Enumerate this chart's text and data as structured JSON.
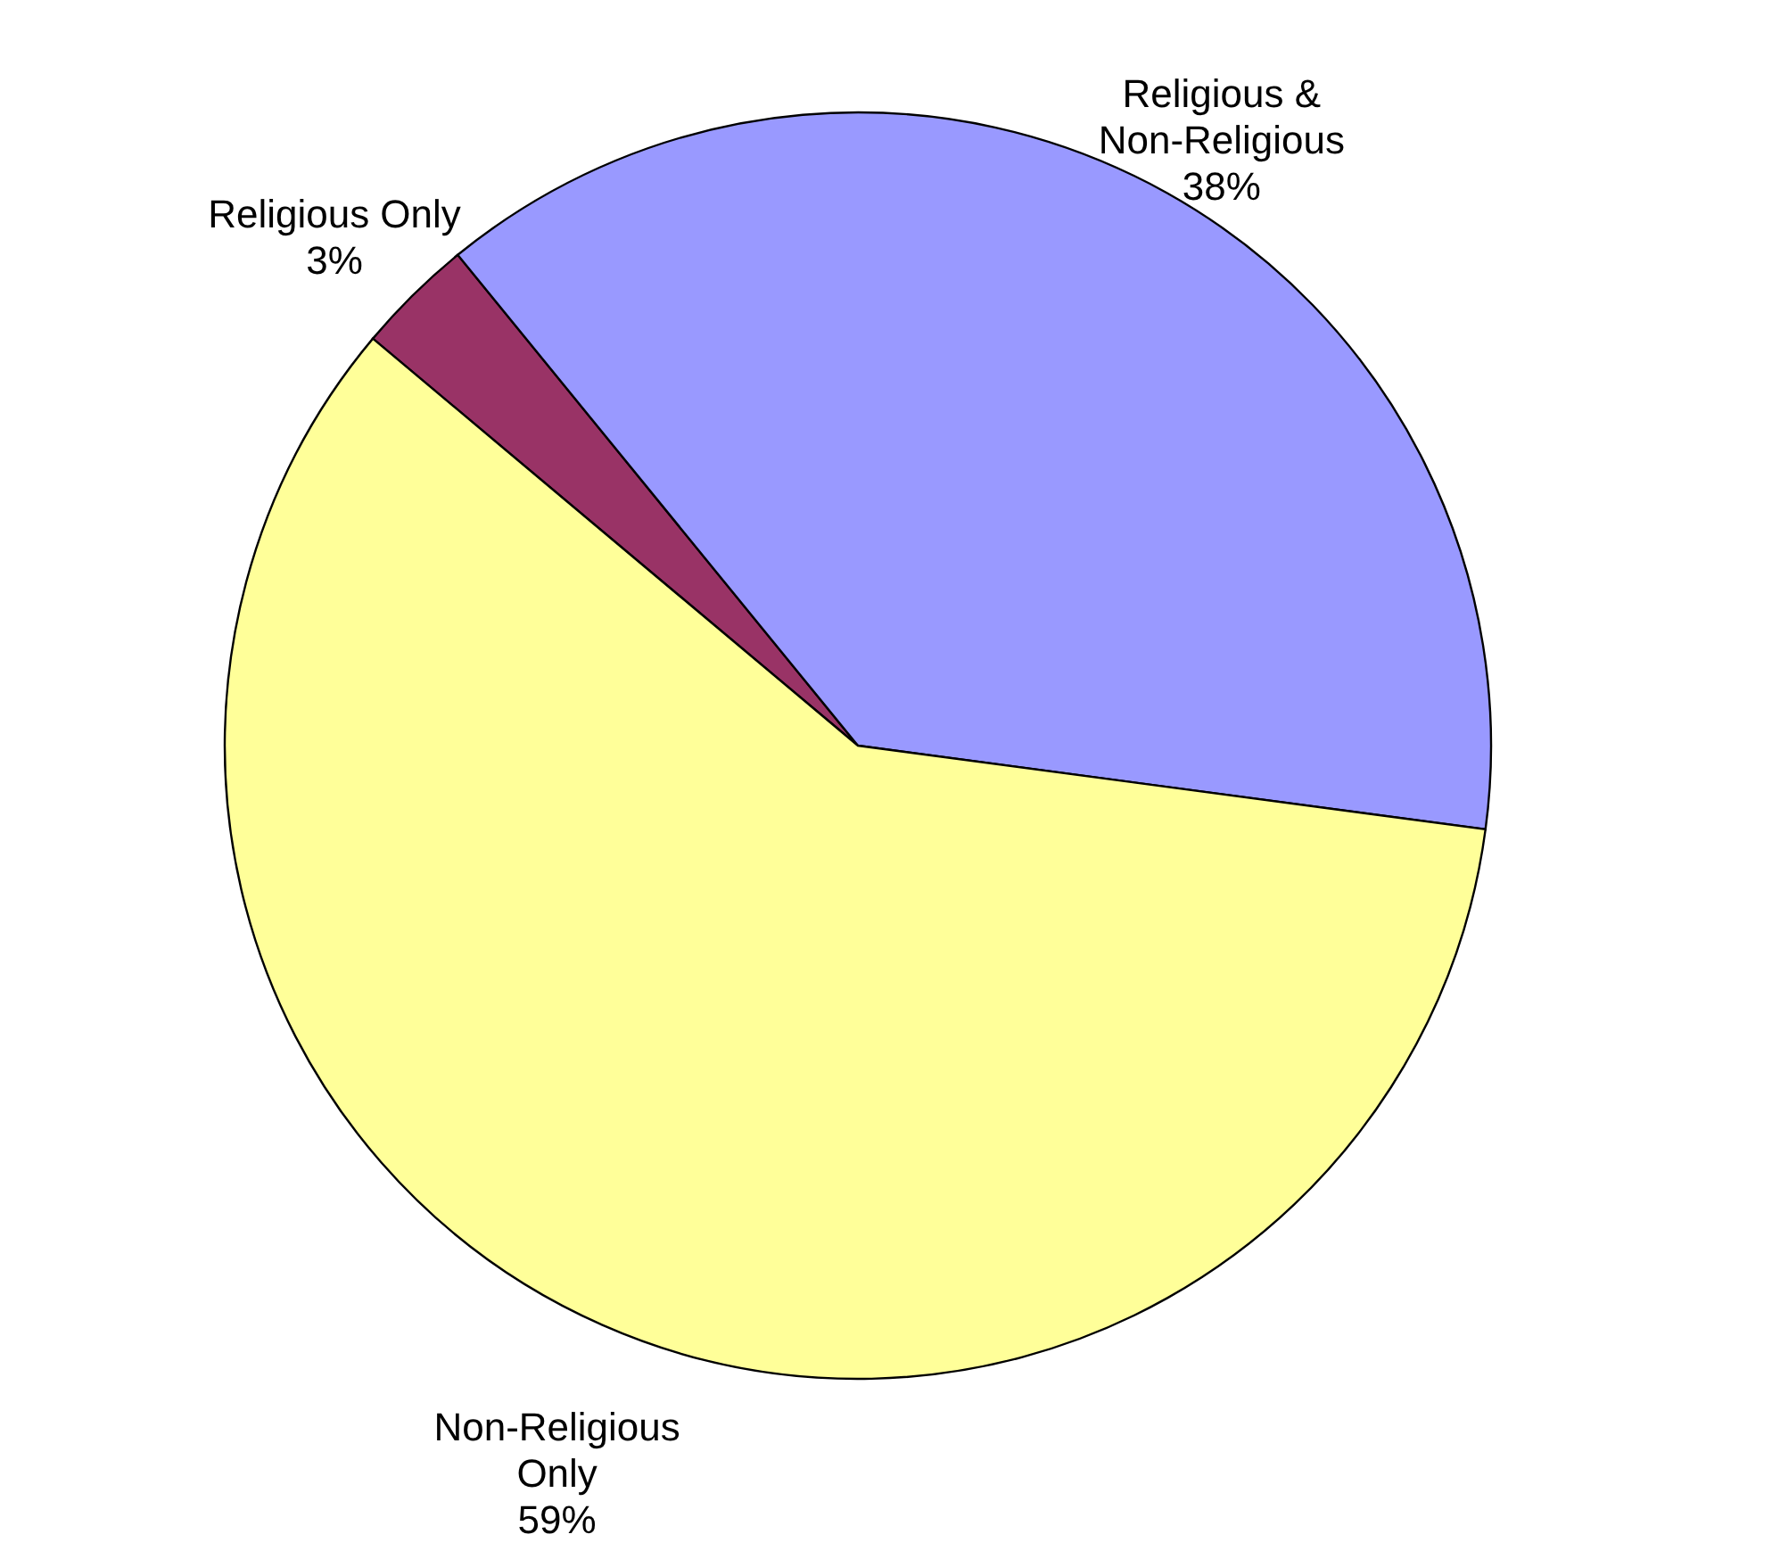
{
  "chart_data": {
    "type": "pie",
    "categories": [
      "Religious Only",
      "Religious & Non-Religious",
      "Non-Religious Only"
    ],
    "values": [
      3,
      38,
      59
    ],
    "colors": [
      "#993366",
      "#9999ff",
      "#ffff99"
    ],
    "value_labels": [
      "3%",
      "38%",
      "59%"
    ]
  }
}
